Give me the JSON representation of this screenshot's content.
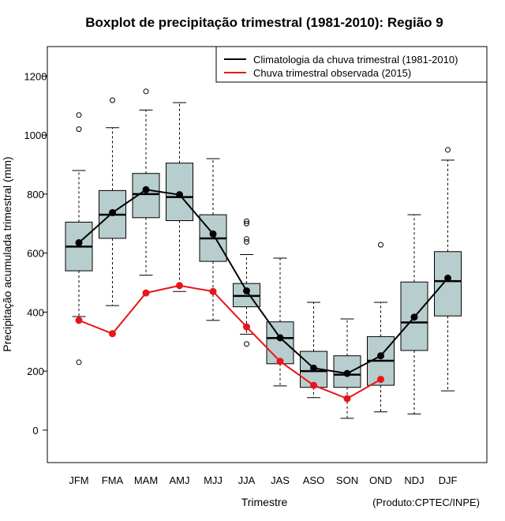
{
  "chart_data": {
    "type": "boxplot",
    "title": "Boxplot de precipitação trimestral (1981-2010): Região 9",
    "xlabel": "Trimestre",
    "ylabel": "Precipitação acumulada trimestral (mm)",
    "ylim": [
      -110,
      1300
    ],
    "yticks": [
      0,
      200,
      400,
      600,
      800,
      1000,
      1200
    ],
    "credit": "(Produto:CPTEC/INPE)",
    "categories": [
      "JFM",
      "FMA",
      "MAM",
      "AMJ",
      "MJJ",
      "JJA",
      "JAS",
      "ASO",
      "SON",
      "OND",
      "NDJ",
      "DJF"
    ],
    "boxes": [
      {
        "min": 385,
        "q1": 540,
        "median": 622,
        "q3": 705,
        "max": 880,
        "outliers": [
          1068,
          1020,
          230
        ]
      },
      {
        "min": 422,
        "q1": 650,
        "median": 730,
        "q3": 812,
        "max": 1025,
        "outliers": [
          1118
        ]
      },
      {
        "min": 525,
        "q1": 720,
        "median": 800,
        "q3": 870,
        "max": 1085,
        "outliers": [
          1148
        ]
      },
      {
        "min": 470,
        "q1": 710,
        "median": 790,
        "q3": 905,
        "max": 1110,
        "outliers": []
      },
      {
        "min": 372,
        "q1": 572,
        "median": 650,
        "q3": 730,
        "max": 920,
        "outliers": []
      },
      {
        "min": 325,
        "q1": 418,
        "median": 455,
        "q3": 497,
        "max": 595,
        "outliers": [
          708,
          700,
          648,
          638,
          292
        ]
      },
      {
        "min": 150,
        "q1": 225,
        "median": 312,
        "q3": 367,
        "max": 583,
        "outliers": []
      },
      {
        "min": 110,
        "q1": 145,
        "median": 200,
        "q3": 267,
        "max": 433,
        "outliers": []
      },
      {
        "min": 40,
        "q1": 145,
        "median": 188,
        "q3": 252,
        "max": 377,
        "outliers": []
      },
      {
        "min": 62,
        "q1": 152,
        "median": 235,
        "q3": 317,
        "max": 433,
        "outliers": [
          628
        ]
      },
      {
        "min": 55,
        "q1": 270,
        "median": 365,
        "q3": 502,
        "max": 730,
        "outliers": []
      },
      {
        "min": 133,
        "q1": 387,
        "median": 505,
        "q3": 605,
        "max": 915,
        "outliers": [
          950
        ]
      }
    ],
    "series": [
      {
        "name": "Climatologia da chuva trimestral (1981-2010)",
        "color": "#000000",
        "values": [
          635,
          737,
          815,
          798,
          665,
          472,
          313,
          210,
          192,
          252,
          383,
          515
        ]
      },
      {
        "name": "Chuva trimestral observada (2015)",
        "color": "#e8141b",
        "values": [
          372,
          327,
          465,
          490,
          470,
          350,
          233,
          152,
          107,
          172,
          null,
          null
        ]
      }
    ],
    "box_color": "#b8cdcd",
    "legend_position": "top-right"
  }
}
